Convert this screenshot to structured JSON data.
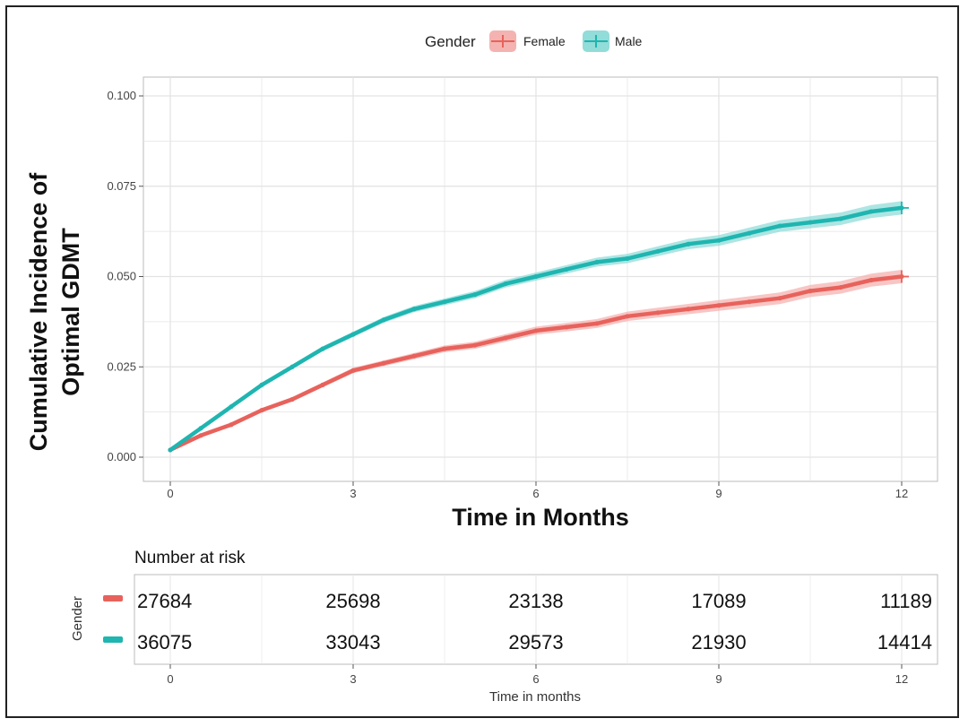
{
  "chart_data": {
    "type": "line",
    "xlabel": "Time in Months",
    "ylabel_line1": "Cumulative Incidence of",
    "ylabel_line2": "Optimal GDMT",
    "x_ticks": [
      "0",
      "3",
      "6",
      "9",
      "12"
    ],
    "y_ticks": [
      "0.000",
      "0.025",
      "0.050",
      "0.075",
      "0.100"
    ],
    "xlim": [
      0,
      12
    ],
    "ylim": [
      0,
      0.1
    ],
    "grid": true,
    "legend": {
      "title": "Gender",
      "position": "top",
      "items": [
        "Female",
        "Male"
      ]
    },
    "colors": {
      "Female": "#e8625c",
      "Male": "#1fb5b0",
      "Female_band": "#f4b3b0",
      "Male_band": "#92dcd9"
    },
    "series": [
      {
        "name": "Female",
        "x": [
          0,
          0.5,
          1,
          1.5,
          2,
          2.5,
          3,
          3.5,
          4,
          4.5,
          5,
          5.5,
          6,
          6.5,
          7,
          7.5,
          8,
          8.5,
          9,
          9.5,
          10,
          10.5,
          11,
          11.5,
          12
        ],
        "y": [
          0.002,
          0.006,
          0.009,
          0.013,
          0.016,
          0.02,
          0.024,
          0.026,
          0.028,
          0.03,
          0.031,
          0.033,
          0.035,
          0.036,
          0.037,
          0.039,
          0.04,
          0.041,
          0.042,
          0.043,
          0.044,
          0.046,
          0.047,
          0.049,
          0.05
        ]
      },
      {
        "name": "Male",
        "x": [
          0,
          0.5,
          1,
          1.5,
          2,
          2.5,
          3,
          3.5,
          4,
          4.5,
          5,
          5.5,
          6,
          6.5,
          7,
          7.5,
          8,
          8.5,
          9,
          9.5,
          10,
          10.5,
          11,
          11.5,
          12
        ],
        "y": [
          0.002,
          0.008,
          0.014,
          0.02,
          0.025,
          0.03,
          0.034,
          0.038,
          0.041,
          0.043,
          0.045,
          0.048,
          0.05,
          0.052,
          0.054,
          0.055,
          0.057,
          0.059,
          0.06,
          0.062,
          0.064,
          0.065,
          0.066,
          0.068,
          0.069
        ]
      }
    ]
  },
  "risk_table": {
    "title": "Number at risk",
    "strata_label": "Gender",
    "xlabel": "Time in months",
    "times": [
      "0",
      "3",
      "6",
      "9",
      "12"
    ],
    "rows": [
      {
        "name": "Female",
        "values": [
          "27684",
          "25698",
          "23138",
          "17089",
          "11189"
        ]
      },
      {
        "name": "Male",
        "values": [
          "36075",
          "33043",
          "29573",
          "21930",
          "14414"
        ]
      }
    ]
  }
}
